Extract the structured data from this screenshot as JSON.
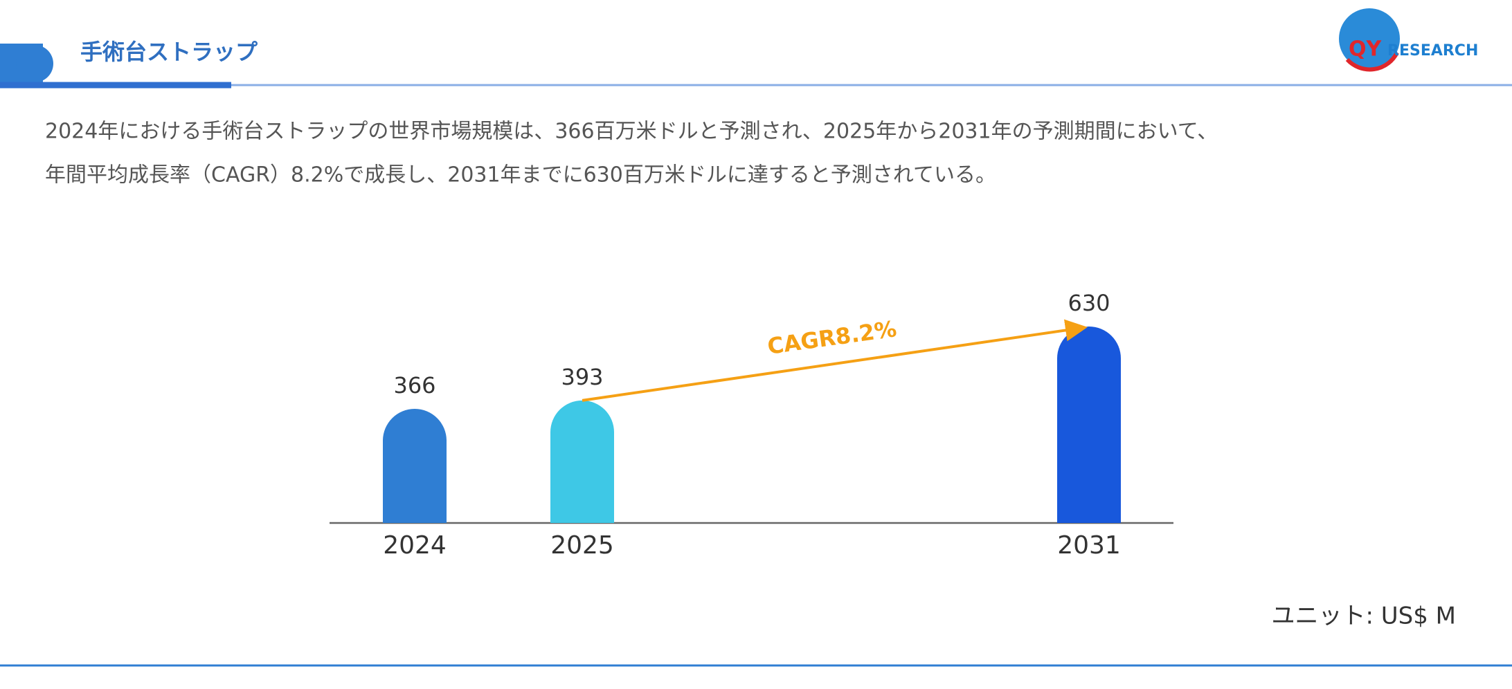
{
  "header": {
    "title": "手術台ストラップ",
    "logo_mark": "QY",
    "logo_text": "RESEARCH"
  },
  "description": [
    "2024年における手術台ストラップの世界市場規模は、366百万米ドルと予測され、2025年から2031年の予測期間において、",
    "年間平均成長率（CAGR）8.2%で成長し、2031年までに630百万米ドルに達すると予測されている。"
  ],
  "chart_data": {
    "type": "bar",
    "categories": [
      "2024",
      "2025",
      "2031"
    ],
    "values": [
      366,
      393,
      630
    ],
    "colors": [
      "#2f7ed3",
      "#3ec8e6",
      "#1858dc"
    ],
    "annotation": "CAGR8.2%",
    "annotation_color": "#f5a014",
    "unit": "ユニット: US$ M"
  }
}
